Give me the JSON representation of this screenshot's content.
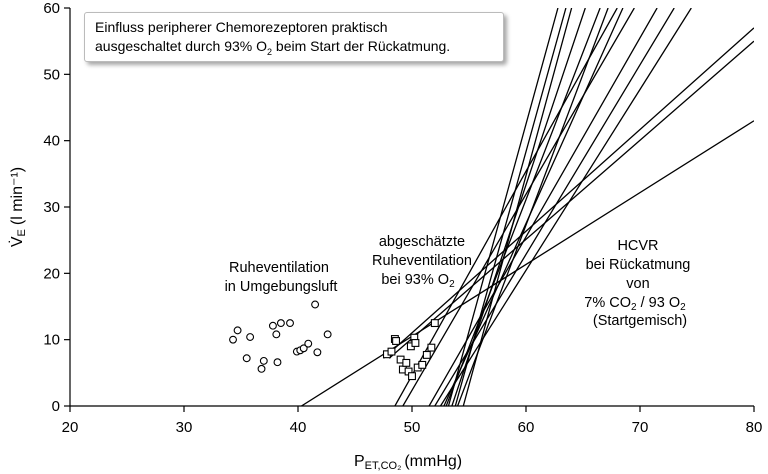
{
  "chart_data": {
    "type": "scatter",
    "xlabel": "P",
    "xlabel_sub": "ET,CO₂",
    "xlabel_unit": "(mmHg)",
    "ylabel_dot": "V̇",
    "ylabel_sub": "E",
    "ylabel_unit": "(l min⁻¹)",
    "xlim": [
      20,
      80
    ],
    "ylim": [
      0,
      60
    ],
    "xticks": [
      "20",
      "30",
      "40",
      "50",
      "60",
      "70",
      "80"
    ],
    "yticks": [
      "0",
      "10",
      "20",
      "30",
      "40",
      "50",
      "60"
    ],
    "grid": false,
    "note": {
      "line1": "Einfluss peripherer Chemorezeptoren praktisch",
      "line2_before": "ausgeschaltet durch 93% O",
      "line2_sub": "2",
      "line2_after": " beim Start der Rückatmung."
    },
    "annotations": {
      "rest_air": [
        "Ruheventilation",
        "in Umgebungsluft"
      ],
      "rest_o2": [
        "abgeschätzte",
        "Ruheventilation",
        "bei 93% O"
      ],
      "rest_o2_sub": "2",
      "hcvr": [
        "HCVR",
        "bei Rückatmung",
        "von",
        "7% CO",
        " / 93 O",
        "(Startgemisch)"
      ],
      "hcvr_sub1": "2",
      "hcvr_sub2": "2"
    },
    "series": [
      {
        "marker": "circle",
        "points": [
          [
            34.3,
            10
          ],
          [
            34.7,
            11.4
          ],
          [
            35.5,
            7.2
          ],
          [
            35.8,
            10.4
          ],
          [
            36.8,
            5.6
          ],
          [
            37.0,
            6.8
          ],
          [
            37.8,
            12.1
          ],
          [
            38.1,
            10.8
          ],
          [
            38.2,
            6.6
          ],
          [
            38.5,
            12.5
          ],
          [
            39.3,
            12.5
          ],
          [
            39.9,
            8.2
          ],
          [
            40.2,
            8.4
          ],
          [
            40.5,
            8.7
          ],
          [
            40.9,
            9.4
          ],
          [
            41.5,
            15.3
          ],
          [
            41.7,
            8.1
          ],
          [
            42.6,
            10.8
          ]
        ]
      },
      {
        "marker": "square",
        "points": [
          [
            47.8,
            7.8
          ],
          [
            48.2,
            8.2
          ],
          [
            48.5,
            10.1
          ],
          [
            48.6,
            9.8
          ],
          [
            49.0,
            7.0
          ],
          [
            49.2,
            5.5
          ],
          [
            49.5,
            6.5
          ],
          [
            49.7,
            5.2
          ],
          [
            49.9,
            9.0
          ],
          [
            50.0,
            4.5
          ],
          [
            50.2,
            10.3
          ],
          [
            50.3,
            9.5
          ],
          [
            50.5,
            5.8
          ],
          [
            50.9,
            6.2
          ],
          [
            51.3,
            7.7
          ],
          [
            51.7,
            8.8
          ],
          [
            52.0,
            12.5
          ]
        ]
      }
    ],
    "response_lines": [
      [
        [
          40.3,
          0
        ],
        [
          80,
          43
        ]
      ],
      [
        [
          47.5,
          7.2
        ],
        [
          80,
          57
        ]
      ],
      [
        [
          48.0,
          7.2
        ],
        [
          80,
          55
        ]
      ],
      [
        [
          48.5,
          0
        ],
        [
          68.0,
          60
        ]
      ],
      [
        [
          49.2,
          0
        ],
        [
          69.5,
          60
        ]
      ],
      [
        [
          51.5,
          0
        ],
        [
          71.5,
          60
        ]
      ],
      [
        [
          52.0,
          0
        ],
        [
          73.0,
          60
        ]
      ],
      [
        [
          52.5,
          0
        ],
        [
          74.5,
          60
        ]
      ],
      [
        [
          52.8,
          0
        ],
        [
          68.5,
          60
        ]
      ],
      [
        [
          53.0,
          0
        ],
        [
          66.5,
          60
        ]
      ],
      [
        [
          53.2,
          0
        ],
        [
          62.8,
          60
        ]
      ],
      [
        [
          53.5,
          0
        ],
        [
          65.2,
          60
        ]
      ],
      [
        [
          53.8,
          0
        ],
        [
          63.5,
          60
        ]
      ],
      [
        [
          54.0,
          0
        ],
        [
          67.2,
          60
        ]
      ],
      [
        [
          54.5,
          0
        ],
        [
          64.0,
          60
        ]
      ]
    ]
  }
}
